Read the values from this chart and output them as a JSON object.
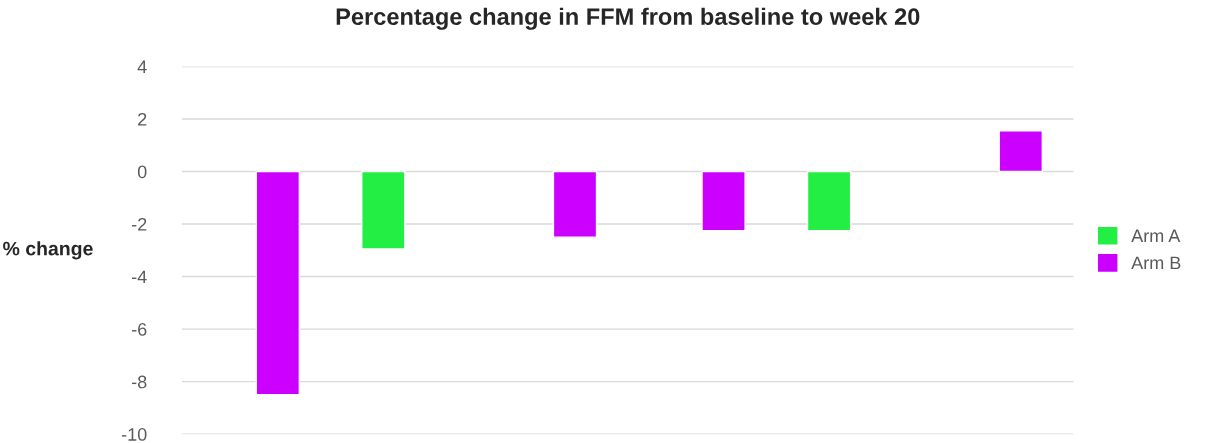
{
  "chart_data": {
    "type": "bar",
    "title": "Percentage change in FFM from baseline to week 20",
    "ylabel": "% change",
    "categories": [
      null,
      null,
      null,
      null,
      null,
      null
    ],
    "series": [
      {
        "name": "Arm A",
        "color": "#22ee44",
        "values": [
          null,
          -2.95,
          null,
          null,
          -2.25,
          null
        ]
      },
      {
        "name": "Arm B",
        "color": "#cc00ff",
        "values": [
          -8.5,
          null,
          -2.5,
          -2.25,
          null,
          1.55
        ]
      }
    ],
    "ylim": [
      -10,
      4
    ],
    "yticks": [
      -10,
      -8,
      -6,
      -4,
      -2,
      0,
      2,
      4
    ],
    "grid": "y",
    "legend": "right",
    "tick_labels": "y"
  }
}
